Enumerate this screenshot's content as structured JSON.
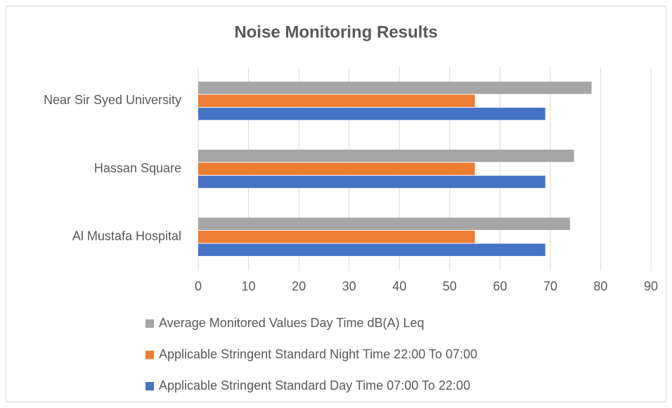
{
  "chart_data": {
    "type": "bar",
    "orientation": "horizontal",
    "title": "Noise Monitoring Results",
    "categories": [
      "Near Sir Syed University",
      "Hassan Square",
      "Al Mustafa Hospital"
    ],
    "series": [
      {
        "name": "Average Monitored Values Day Time dB(A) Leq",
        "color": "#a5a5a5",
        "values": [
          78.2,
          74.7,
          73.9
        ]
      },
      {
        "name": "Applicable Stringent Standard Night Time 22:00 To 07:00",
        "color": "#ed7d31",
        "values": [
          55,
          55,
          55
        ]
      },
      {
        "name": "Applicable Stringent Standard Day Time 07:00 To 22:00",
        "color": "#4472c4",
        "values": [
          69,
          69,
          69
        ]
      }
    ],
    "xlim": [
      0,
      90
    ],
    "xticks": [
      0,
      10,
      20,
      30,
      40,
      50,
      60,
      70,
      80,
      90
    ],
    "grid": true
  }
}
